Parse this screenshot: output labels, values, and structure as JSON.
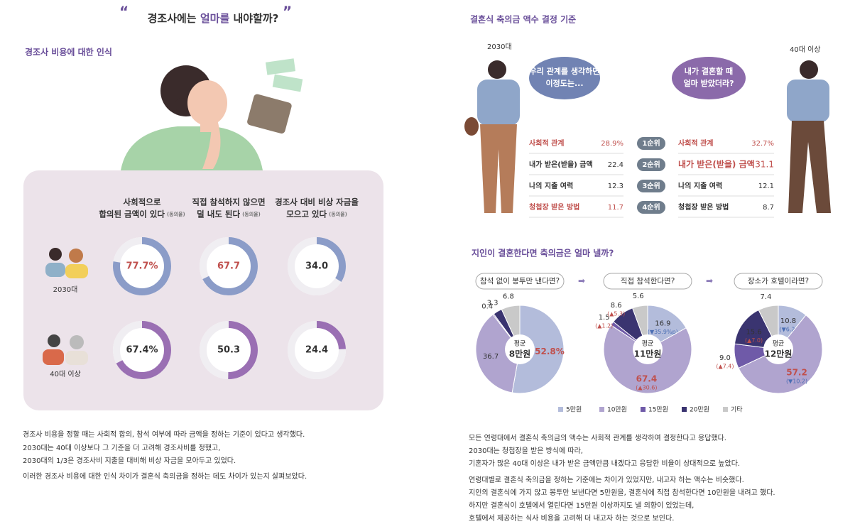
{
  "left": {
    "title": [
      "경조사에는 ",
      "얼마를",
      " 내야할까?"
    ],
    "section_title": "경조사 비용에 대한 인식",
    "columns": [
      {
        "lines": [
          "사회적으로",
          "합의된 금액이 있다"
        ],
        "note": "(동의율)"
      },
      {
        "lines": [
          "직접 참석하지 않으면",
          "덜 내도 된다"
        ],
        "note": "(동의율)"
      },
      {
        "lines": [
          "경조사 대비 비상 자금을",
          "모으고 있다"
        ],
        "note": "(동의율)"
      }
    ],
    "groups": [
      {
        "name": "2030대",
        "values": [
          77.7,
          67.7,
          34.0
        ],
        "value_labels": [
          "77.7%",
          "67.7",
          "34.0"
        ]
      },
      {
        "name": "40대 이상",
        "values": [
          67.4,
          50.3,
          24.4
        ],
        "value_labels": [
          "67.4%",
          "50.3",
          "24.4"
        ]
      }
    ],
    "paragraphs": [
      "경조사 비용을 정할 때는 사회적 합의, 참석 여부에 따라 금액을 정하는 기준이 있다고 생각했다.",
      "2030대는 40대 이상보다 그 기준을 더 고려해 경조사비를 정했고,",
      "2030대의 1/3은 경조사비 지출을 대비해 비상 자금을 모아두고 있었다.",
      "이러한 경조사 비용에 대한 인식 차이가 결혼식 축의금을 정하는 데도 차이가 있는지 살펴보았다."
    ]
  },
  "right": {
    "section_title": "결혼식 축의금 액수 결정 기준",
    "groups": [
      {
        "name": "2030대",
        "bubble": [
          "우리 관계를 생각하면",
          "이정도는..."
        ],
        "items": [
          "사회적 관계",
          "내가 받은(받을) 금액",
          "나의 지출 여력",
          "청첩장 받은 방법"
        ],
        "values": [
          "28.9%",
          "22.4",
          "12.3",
          "11.7"
        ]
      },
      {
        "name": "40대 이상",
        "bubble": [
          "내가 결혼할 때",
          "얼마 받았더라?"
        ],
        "items": [
          "사회적 관계",
          "내가 받은(받을) 금액",
          "나의 지출 여력",
          "청첩장 받은 방법"
        ],
        "values": [
          "32.7%",
          "31.1",
          "12.1",
          "8.7"
        ]
      }
    ],
    "ranks": [
      "1순위",
      "2순위",
      "3순위",
      "4순위"
    ],
    "pie_title": "지인이 결혼한다면 축의금은 얼마 낼까?",
    "legend": [
      "5만원",
      "10만원",
      "15만원",
      "20만원",
      "기타"
    ],
    "colors": [
      "#b3bcdb",
      "#b0a4cf",
      "#6f5aa8",
      "#3a3470",
      "#c9c9c9"
    ],
    "avg_label": "평균",
    "pies": [
      {
        "question": "참석 없이 봉투만 낸다면?",
        "average": "8만원",
        "values": [
          52.8,
          36.7,
          0.4,
          3.3,
          6.8
        ],
        "value_labels": [
          "52.8%",
          "36.7",
          "0.4",
          "3.3",
          "6.8"
        ],
        "changes": [
          null,
          null,
          null,
          null,
          null
        ]
      },
      {
        "question": "직접 참석한다면?",
        "average": "11만원",
        "values": [
          16.9,
          67.4,
          1.5,
          8.6,
          5.6
        ],
        "value_labels": [
          "16.9",
          "67.4",
          "1.5",
          "8.6",
          "5.6"
        ],
        "changes": [
          "(▼35.9%p)",
          "(▲30.6)",
          "(▲1.2)",
          "(▲5.3)",
          null
        ]
      },
      {
        "question": "장소가 호텔이라면?",
        "average": "12만원",
        "values": [
          10.8,
          57.2,
          9.0,
          15.6,
          7.4
        ],
        "value_labels": [
          "10.8",
          "57.2",
          "9.0",
          "15.6",
          "7.4"
        ],
        "changes": [
          "(▼6.2)",
          "(▼10.2)",
          "(▲7.4)",
          "(▲7.0)",
          null
        ]
      }
    ],
    "paragraphs": [
      "모든 연령대에서 결혼식 축의금의 액수는 사회적 관계를 생각하여 결정한다고 응답했다.",
      "2030대는 청첩장을 받은 방식에 따라,",
      "기혼자가 많은 40대 이상은 내가 받은 금액만큼 내겠다고 응답한 비율이 상대적으로 높았다.",
      "연령대별로 결혼식 축의금을 정하는 기준에는 차이가 있었지만, 내고자 하는 액수는 비슷했다.",
      "지인의 결혼식에 가지 않고 봉투만 보낸다면 5만원을, 결혼식에 직접 참석한다면 10만원을 내려고 했다.",
      "하지만 결혼식이 호텔에서 열린다면 15만원 이상까지도 낼 의향이 있었는데,",
      "호텔에서 제공하는 식사 비용을 고려해 더 내고자 하는 것으로 보인다."
    ]
  }
}
